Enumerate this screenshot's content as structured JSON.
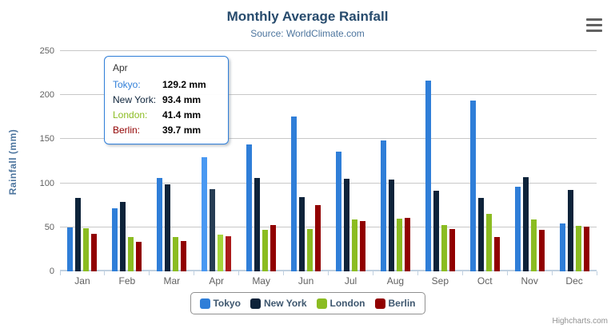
{
  "chart": {
    "title": "Monthly Average Rainfall",
    "subtitle": "Source: WorldClimate.com"
  },
  "chart_data": {
    "type": "bar",
    "title": "Monthly Average Rainfall",
    "subtitle": "Source: WorldClimate.com",
    "xlabel": "",
    "ylabel": "Rainfall (mm)",
    "ylim": [
      0,
      250
    ],
    "yticks": [
      0,
      50,
      100,
      150,
      200,
      250
    ],
    "grid": true,
    "legend_position": "bottom",
    "categories": [
      "Jan",
      "Feb",
      "Mar",
      "Apr",
      "May",
      "Jun",
      "Jul",
      "Aug",
      "Sep",
      "Oct",
      "Nov",
      "Dec"
    ],
    "series": [
      {
        "name": "Tokyo",
        "color": "#2f7ed8",
        "hover_color": "#4998f2",
        "values": [
          49.9,
          71.5,
          106.4,
          129.2,
          144.0,
          176.0,
          135.6,
          148.5,
          216.4,
          194.1,
          95.6,
          54.4
        ]
      },
      {
        "name": "New York",
        "color": "#0d233a",
        "hover_color": "#273d54",
        "values": [
          83.6,
          78.8,
          98.5,
          93.4,
          106.0,
          84.5,
          105.0,
          104.3,
          91.2,
          83.5,
          106.6,
          92.3
        ]
      },
      {
        "name": "London",
        "color": "#8bbc21",
        "hover_color": "#a5d63b",
        "values": [
          48.9,
          38.8,
          39.3,
          41.4,
          47.0,
          48.3,
          59.0,
          59.6,
          52.4,
          65.2,
          59.3,
          51.2
        ]
      },
      {
        "name": "Berlin",
        "color": "#910000",
        "hover_color": "#ab1a1a",
        "values": [
          42.4,
          33.2,
          34.5,
          39.7,
          52.6,
          75.5,
          57.4,
          60.4,
          47.6,
          39.1,
          46.8,
          51.1
        ]
      }
    ],
    "hovered_category": "Apr",
    "hovered_category_index": 3
  },
  "tooltip": {
    "header": "Apr",
    "border_color": "#2f7ed8",
    "rows": [
      {
        "name": "Tokyo:",
        "value": "129.2 mm",
        "color": "#2f7ed8"
      },
      {
        "name": "New York:",
        "value": "93.4 mm",
        "color": "#0d233a"
      },
      {
        "name": "London:",
        "value": "41.4 mm",
        "color": "#8bbc21"
      },
      {
        "name": "Berlin:",
        "value": "39.7 mm",
        "color": "#910000"
      }
    ]
  },
  "legend": {
    "items": [
      {
        "label": "Tokyo",
        "color": "#2f7ed8"
      },
      {
        "label": "New York",
        "color": "#0d233a"
      },
      {
        "label": "London",
        "color": "#8bbc21"
      },
      {
        "label": "Berlin",
        "color": "#910000"
      }
    ]
  },
  "credits": {
    "label": "Highcharts.com"
  },
  "icons": {
    "export_menu": "hamburger-menu-icon"
  },
  "colors": {
    "title": "#274b6d",
    "subtitle": "#4d759e",
    "y_axis_title": "#4d759e",
    "axis_labels": "#606060",
    "axis_line": "#c0d0e0",
    "gridline": "#c8c8c8",
    "legend_text": "#3e576f",
    "legend_border": "#909090",
    "credits_text": "#909090",
    "tooltip_border": "#2f7ed8"
  }
}
